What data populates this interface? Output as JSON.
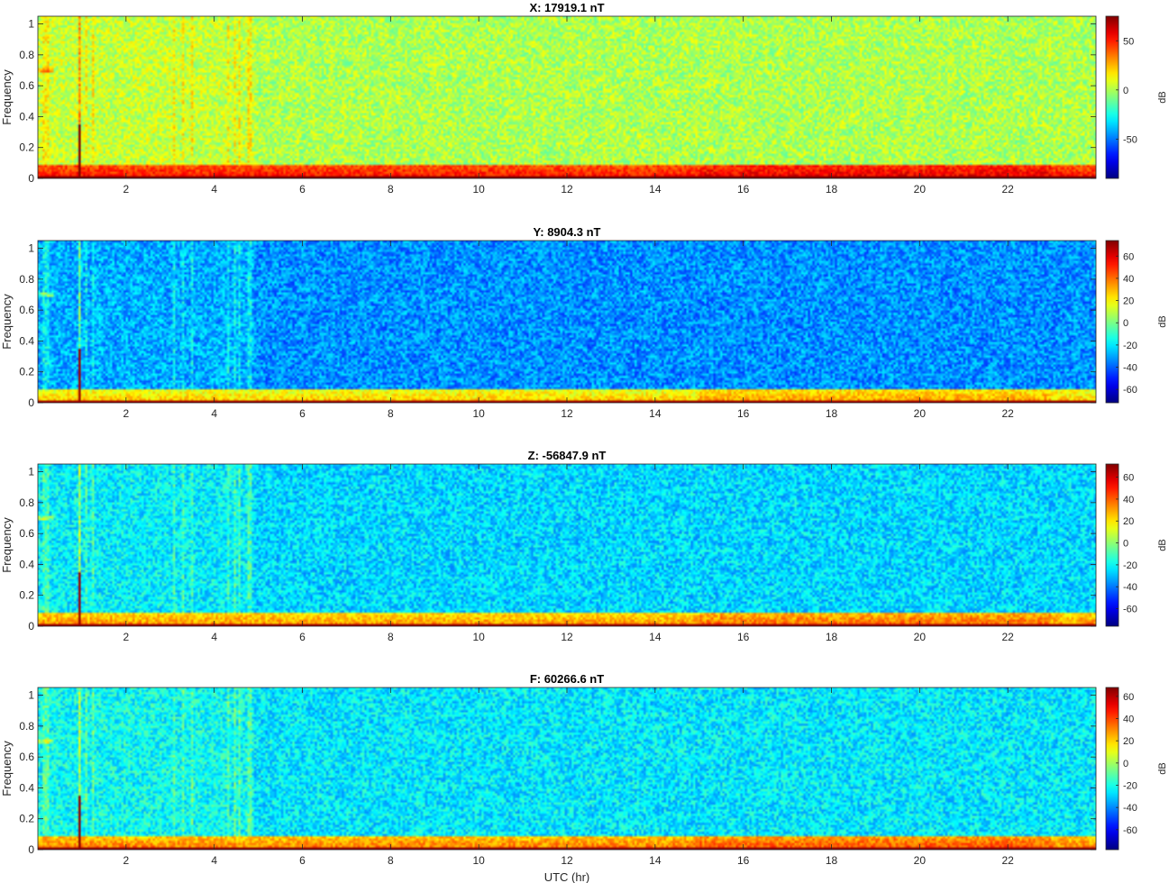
{
  "chart_data": [
    {
      "type": "heatmap",
      "title": "X: 17919.1 nT",
      "ylabel": "Frequency",
      "xlabel": "",
      "x_ticks": [
        2,
        4,
        6,
        8,
        10,
        12,
        14,
        16,
        18,
        20,
        22
      ],
      "y_ticks": [
        0,
        0.2,
        0.4,
        0.6,
        0.8,
        1
      ],
      "xlim": [
        0,
        24
      ],
      "ylim": [
        0,
        1.05
      ],
      "colorbar": {
        "label": "dB",
        "ticks": [
          50,
          0,
          -50
        ],
        "range": [
          -90,
          75
        ],
        "colormap": "jet"
      },
      "background_level_db": 0,
      "features": {
        "spike_hour": 0.95,
        "low_freq_band_db": 45,
        "baseline_db": 75
      }
    },
    {
      "type": "heatmap",
      "title": "Y: 8904.3 nT",
      "ylabel": "Frequency",
      "xlabel": "",
      "x_ticks": [
        2,
        4,
        6,
        8,
        10,
        12,
        14,
        16,
        18,
        20,
        22
      ],
      "y_ticks": [
        0,
        0.2,
        0.4,
        0.6,
        0.8,
        1
      ],
      "xlim": [
        0,
        24
      ],
      "ylim": [
        0,
        1.05
      ],
      "colorbar": {
        "label": "dB",
        "ticks": [
          60,
          40,
          20,
          0,
          -20,
          -40,
          -60
        ],
        "range": [
          -72,
          74
        ],
        "colormap": "jet"
      },
      "background_level_db": -33,
      "features": {
        "spike_hour": 0.95,
        "low_freq_band_db": 20,
        "baseline_db": 70
      }
    },
    {
      "type": "heatmap",
      "title": "Z: -56847.9 nT",
      "ylabel": "Frequency",
      "xlabel": "",
      "x_ticks": [
        2,
        4,
        6,
        8,
        10,
        12,
        14,
        16,
        18,
        20,
        22
      ],
      "y_ticks": [
        0,
        0.2,
        0.4,
        0.6,
        0.8,
        1
      ],
      "xlim": [
        0,
        24
      ],
      "ylim": [
        0,
        1.05
      ],
      "colorbar": {
        "label": "dB",
        "ticks": [
          60,
          40,
          20,
          0,
          -20,
          -40,
          -60
        ],
        "range": [
          -76,
          72
        ],
        "colormap": "jet"
      },
      "background_level_db": -26,
      "features": {
        "spike_hour": 0.95,
        "low_freq_band_db": 25,
        "baseline_db": 68
      }
    },
    {
      "type": "heatmap",
      "title": "F: 60266.6 nT",
      "ylabel": "Frequency",
      "xlabel": "UTC (hr)",
      "x_ticks": [
        2,
        4,
        6,
        8,
        10,
        12,
        14,
        16,
        18,
        20,
        22
      ],
      "y_ticks": [
        0,
        0.2,
        0.4,
        0.6,
        0.8,
        1
      ],
      "xlim": [
        0,
        24
      ],
      "ylim": [
        0,
        1.05
      ],
      "colorbar": {
        "label": "dB",
        "ticks": [
          60,
          40,
          20,
          0,
          -20,
          -40,
          -60
        ],
        "range": [
          -78,
          68
        ],
        "colormap": "jet"
      },
      "background_level_db": -26,
      "features": {
        "spike_hour": 0.95,
        "low_freq_band_db": 25,
        "baseline_db": 66
      }
    }
  ]
}
